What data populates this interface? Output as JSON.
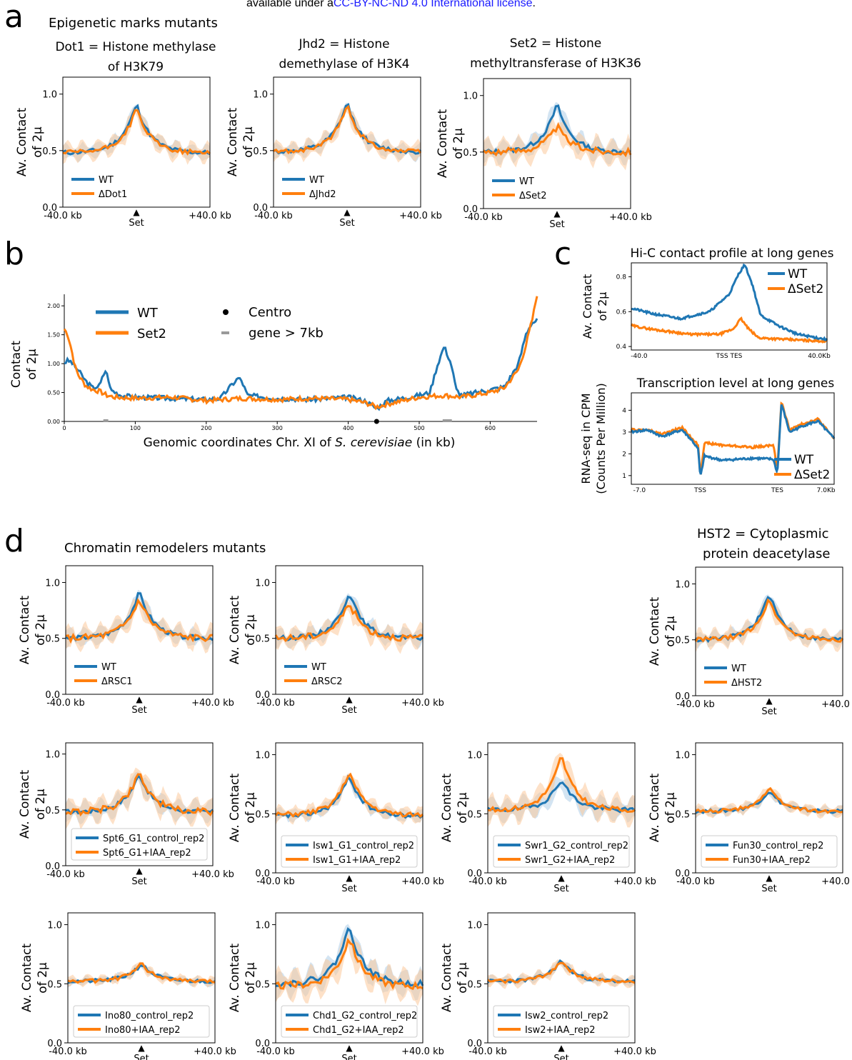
{
  "license": {
    "prefix": "available under a",
    "link": "CC-BY-NC-ND 4.0 International license",
    "suffix": "."
  },
  "colors": {
    "wt": "#1f77b4",
    "mutant": "#ff7f0e",
    "band_wt": "#aecde8",
    "band_mut": "#fbc89a"
  },
  "panel_letters": [
    "a",
    "b",
    "c",
    "d"
  ],
  "section_titles": {
    "a": "Epigenetic marks mutants",
    "d": "Chromatin remodelers mutants",
    "d_right": [
      "HST2 =  Cytoplasmic",
      "protein deacetylase"
    ]
  },
  "common_axes": {
    "ylabel": [
      "Av. Contact",
      "of 2μ"
    ],
    "yticks": [
      "0.0",
      "0.5",
      "1.0"
    ],
    "xtick_left": "-40.0 kb",
    "xtick_right": "+40.0 kb",
    "center_label": "Set",
    "center_marker": "▲"
  },
  "chart_data": [
    {
      "id": "dot1",
      "type": "line",
      "title": [
        "Dot1 = Histone methylase",
        "of H3K79"
      ],
      "legend": [
        "WT",
        "ΔDot1"
      ],
      "ylim": [
        0,
        1.15
      ],
      "wt": {
        "base": 0.48,
        "peak": 0.92,
        "noise": 0.02
      },
      "mut": {
        "base": 0.48,
        "peak": 0.88,
        "noise": 0.02
      },
      "band_width": 0.1
    },
    {
      "id": "jhd2",
      "type": "line",
      "title": [
        "Jhd2 = Histone",
        "demethylase of H3K4"
      ],
      "legend": [
        "WT",
        "ΔJhd2"
      ],
      "ylim": [
        0,
        1.15
      ],
      "wt": {
        "base": 0.49,
        "peak": 0.93,
        "noise": 0.02
      },
      "mut": {
        "base": 0.49,
        "peak": 0.91,
        "noise": 0.02
      },
      "band_width": 0.1
    },
    {
      "id": "set2",
      "type": "line",
      "title": [
        "Set2 = Histone",
        "methyltransferase of H3K36"
      ],
      "legend": [
        "WT",
        "ΔSet2"
      ],
      "ylim": [
        0,
        1.15
      ],
      "wt": {
        "base": 0.5,
        "peak": 0.93,
        "noise": 0.02
      },
      "mut": {
        "base": 0.5,
        "peak": 0.73,
        "noise": 0.03
      },
      "band_width": 0.14
    },
    {
      "id": "rsc1",
      "type": "line",
      "legend": [
        "WT",
        "ΔRSC1"
      ],
      "ylim": [
        0,
        1.15
      ],
      "wt": {
        "base": 0.5,
        "peak": 0.92,
        "noise": 0.02
      },
      "mut": {
        "base": 0.5,
        "peak": 0.86,
        "noise": 0.03
      },
      "band_width": 0.12
    },
    {
      "id": "rsc2",
      "type": "line",
      "legend": [
        "WT",
        "ΔRSC2"
      ],
      "ylim": [
        0,
        1.15
      ],
      "wt": {
        "base": 0.5,
        "peak": 0.92,
        "noise": 0.02
      },
      "mut": {
        "base": 0.5,
        "peak": 0.83,
        "noise": 0.03
      },
      "band_width": 0.12
    },
    {
      "id": "hst2",
      "type": "line",
      "legend": [
        "WT",
        "ΔHST2"
      ],
      "ylim": [
        0,
        1.15
      ],
      "wt": {
        "base": 0.5,
        "peak": 0.92,
        "noise": 0.02
      },
      "mut": {
        "base": 0.5,
        "peak": 0.87,
        "noise": 0.02
      },
      "band_width": 0.1
    },
    {
      "id": "spt6",
      "type": "line",
      "legend": [
        "Spt6_G1_control_rep2",
        "Spt6_G1+IAA_rep2"
      ],
      "ylim": [
        0,
        1.1
      ],
      "wt": {
        "base": 0.48,
        "peak": 0.83,
        "noise": 0.02
      },
      "mut": {
        "base": 0.48,
        "peak": 0.85,
        "noise": 0.03
      },
      "band_width": 0.14
    },
    {
      "id": "isw1",
      "type": "line",
      "legend": [
        "Isw1_G1_control_rep2",
        "Isw1_G1+IAA_rep2"
      ],
      "ylim": [
        0,
        1.1
      ],
      "wt": {
        "base": 0.48,
        "peak": 0.83,
        "noise": 0.02
      },
      "mut": {
        "base": 0.49,
        "peak": 0.86,
        "noise": 0.02
      },
      "band_width": 0.08
    },
    {
      "id": "swr1",
      "type": "line",
      "legend": [
        "Swr1_G2_control_rep2",
        "Swr1_G2+IAA_rep2"
      ],
      "ylim": [
        0,
        1.1
      ],
      "wt": {
        "base": 0.53,
        "peak": 0.8,
        "noise": 0.02
      },
      "mut": {
        "base": 0.53,
        "peak": 1.0,
        "noise": 0.02
      },
      "band_width": 0.14
    },
    {
      "id": "fun30",
      "type": "line",
      "legend": [
        "Fun30_control_rep2",
        "Fun30+IAA_rep2"
      ],
      "ylim": [
        0,
        1.1
      ],
      "wt": {
        "base": 0.52,
        "peak": 0.7,
        "noise": 0.015
      },
      "mut": {
        "base": 0.52,
        "peak": 0.72,
        "noise": 0.015
      },
      "band_width": 0.06
    },
    {
      "id": "ino80",
      "type": "line",
      "legend": [
        "Ino80_control_rep2",
        "Ino80+IAA_rep2"
      ],
      "ylim": [
        0,
        1.1
      ],
      "wt": {
        "base": 0.52,
        "peak": 0.67,
        "noise": 0.015
      },
      "mut": {
        "base": 0.52,
        "peak": 0.67,
        "noise": 0.015
      },
      "band_width": 0.05
    },
    {
      "id": "chd1",
      "type": "line",
      "legend": [
        "Chd1_G2_control_rep2",
        "Chd1_G2+IAA_rep2"
      ],
      "ylim": [
        0,
        1.1
      ],
      "wt": {
        "base": 0.5,
        "peak": 1.0,
        "noise": 0.025
      },
      "mut": {
        "base": 0.48,
        "peak": 0.9,
        "noise": 0.03
      },
      "band_width": 0.16
    },
    {
      "id": "isw2",
      "type": "line",
      "legend": [
        "Isw2_control_rep2",
        "Isw2+IAA_rep2"
      ],
      "ylim": [
        0,
        1.1
      ],
      "wt": {
        "base": 0.52,
        "peak": 0.7,
        "noise": 0.015
      },
      "mut": {
        "base": 0.52,
        "peak": 0.7,
        "noise": 0.015
      },
      "band_width": 0.06
    },
    {
      "id": "chrxi",
      "type": "line",
      "xlabel_prefix": "Genomic coordinates Chr. XI of ",
      "xlabel_italic": "S. cerevisiae",
      "xlabel_suffix": " (in kb)",
      "ylabel": [
        "Contact",
        "of 2μ"
      ],
      "xticks": [
        "0",
        "100",
        "200",
        "300",
        "400",
        "500",
        "600"
      ],
      "yticks": [
        "0.00",
        "0.50",
        "1.00",
        "1.50",
        "2.00"
      ],
      "xlim": [
        0,
        666
      ],
      "ylim": [
        0,
        2.2
      ],
      "legend": [
        "WT",
        "Set2",
        "Centro",
        "gene > 7kb"
      ],
      "centromere_kb": 440,
      "long_genes_kb": [
        [
          55,
          62
        ],
        [
          533,
          546
        ]
      ],
      "wt_points": [
        [
          0,
          1.02
        ],
        [
          5,
          1.05
        ],
        [
          10,
          1.03
        ],
        [
          15,
          0.95
        ],
        [
          20,
          0.88
        ],
        [
          30,
          0.7
        ],
        [
          40,
          0.58
        ],
        [
          50,
          0.62
        ],
        [
          55,
          0.8
        ],
        [
          58,
          0.88
        ],
        [
          62,
          0.75
        ],
        [
          65,
          0.55
        ],
        [
          80,
          0.45
        ],
        [
          100,
          0.42
        ],
        [
          150,
          0.4
        ],
        [
          200,
          0.38
        ],
        [
          220,
          0.4
        ],
        [
          235,
          0.62
        ],
        [
          245,
          0.75
        ],
        [
          250,
          0.7
        ],
        [
          258,
          0.45
        ],
        [
          300,
          0.4
        ],
        [
          350,
          0.38
        ],
        [
          400,
          0.42
        ],
        [
          425,
          0.35
        ],
        [
          440,
          0.22
        ],
        [
          455,
          0.36
        ],
        [
          500,
          0.45
        ],
        [
          515,
          0.5
        ],
        [
          525,
          0.95
        ],
        [
          535,
          1.3
        ],
        [
          545,
          1.0
        ],
        [
          552,
          0.55
        ],
        [
          560,
          0.45
        ],
        [
          600,
          0.55
        ],
        [
          620,
          0.6
        ],
        [
          640,
          1.0
        ],
        [
          650,
          1.5
        ],
        [
          658,
          1.7
        ],
        [
          666,
          1.75
        ]
      ],
      "mut_points": [
        [
          0,
          1.6
        ],
        [
          5,
          1.5
        ],
        [
          10,
          1.25
        ],
        [
          15,
          0.95
        ],
        [
          20,
          0.8
        ],
        [
          30,
          0.62
        ],
        [
          40,
          0.55
        ],
        [
          50,
          0.52
        ],
        [
          60,
          0.45
        ],
        [
          70,
          0.42
        ],
        [
          100,
          0.4
        ],
        [
          150,
          0.42
        ],
        [
          200,
          0.36
        ],
        [
          250,
          0.4
        ],
        [
          300,
          0.38
        ],
        [
          350,
          0.4
        ],
        [
          400,
          0.38
        ],
        [
          425,
          0.32
        ],
        [
          440,
          0.25
        ],
        [
          455,
          0.3
        ],
        [
          500,
          0.42
        ],
        [
          535,
          0.45
        ],
        [
          560,
          0.42
        ],
        [
          600,
          0.5
        ],
        [
          620,
          0.58
        ],
        [
          640,
          0.9
        ],
        [
          650,
          1.3
        ],
        [
          660,
          1.8
        ],
        [
          666,
          2.2
        ]
      ]
    },
    {
      "id": "hic_long",
      "type": "line",
      "title": "Hi-C contact profile at long genes",
      "ylabel": [
        "Av. Contact",
        "of 2μ"
      ],
      "yticks": [
        "0.4",
        "0.6",
        "0.8"
      ],
      "ylim": [
        0.38,
        0.88
      ],
      "xticks": [
        "-40.0",
        "TSS TES",
        "40.0Kb"
      ],
      "legend": [
        "WT",
        "ΔSet2"
      ],
      "wt_points": [
        [
          0,
          0.62
        ],
        [
          0.1,
          0.59
        ],
        [
          0.25,
          0.56
        ],
        [
          0.4,
          0.6
        ],
        [
          0.5,
          0.7
        ],
        [
          0.55,
          0.82
        ],
        [
          0.58,
          0.87
        ],
        [
          0.62,
          0.75
        ],
        [
          0.66,
          0.58
        ],
        [
          0.75,
          0.52
        ],
        [
          0.85,
          0.47
        ],
        [
          1.0,
          0.44
        ]
      ],
      "mut_points": [
        [
          0,
          0.52
        ],
        [
          0.1,
          0.5
        ],
        [
          0.3,
          0.47
        ],
        [
          0.45,
          0.47
        ],
        [
          0.52,
          0.5
        ],
        [
          0.56,
          0.56
        ],
        [
          0.6,
          0.5
        ],
        [
          0.65,
          0.45
        ],
        [
          0.8,
          0.44
        ],
        [
          1.0,
          0.43
        ]
      ]
    },
    {
      "id": "rnaseq",
      "type": "line",
      "title": "Transcription level at long genes",
      "ylabel": [
        "RNA-seq in CPM",
        "(Counts Per Million)"
      ],
      "yticks": [
        "1",
        "2",
        "3",
        "4"
      ],
      "ylim": [
        0.6,
        4.8
      ],
      "xticks": [
        "-7.0",
        "TSS",
        "TES",
        "7.0Kb"
      ],
      "legend": [
        "WT",
        "ΔSet2"
      ],
      "wt_points": [
        [
          0,
          3.0
        ],
        [
          0.08,
          3.1
        ],
        [
          0.15,
          2.8
        ],
        [
          0.25,
          3.1
        ],
        [
          0.3,
          2.6
        ],
        [
          0.33,
          2.2
        ],
        [
          0.34,
          0.9
        ],
        [
          0.36,
          1.9
        ],
        [
          0.45,
          1.7
        ],
        [
          0.6,
          1.8
        ],
        [
          0.7,
          1.75
        ],
        [
          0.72,
          1.1
        ],
        [
          0.74,
          4.3
        ],
        [
          0.78,
          3.0
        ],
        [
          0.85,
          3.3
        ],
        [
          0.92,
          3.5
        ],
        [
          1.0,
          2.7
        ]
      ],
      "mut_points": [
        [
          0,
          3.1
        ],
        [
          0.08,
          3.1
        ],
        [
          0.15,
          2.9
        ],
        [
          0.25,
          3.2
        ],
        [
          0.3,
          2.7
        ],
        [
          0.33,
          2.4
        ],
        [
          0.34,
          1.0
        ],
        [
          0.36,
          2.5
        ],
        [
          0.45,
          2.4
        ],
        [
          0.6,
          2.3
        ],
        [
          0.7,
          2.4
        ],
        [
          0.72,
          1.3
        ],
        [
          0.74,
          4.4
        ],
        [
          0.78,
          3.1
        ],
        [
          0.85,
          3.4
        ],
        [
          0.92,
          3.6
        ],
        [
          1.0,
          2.7
        ]
      ]
    }
  ]
}
